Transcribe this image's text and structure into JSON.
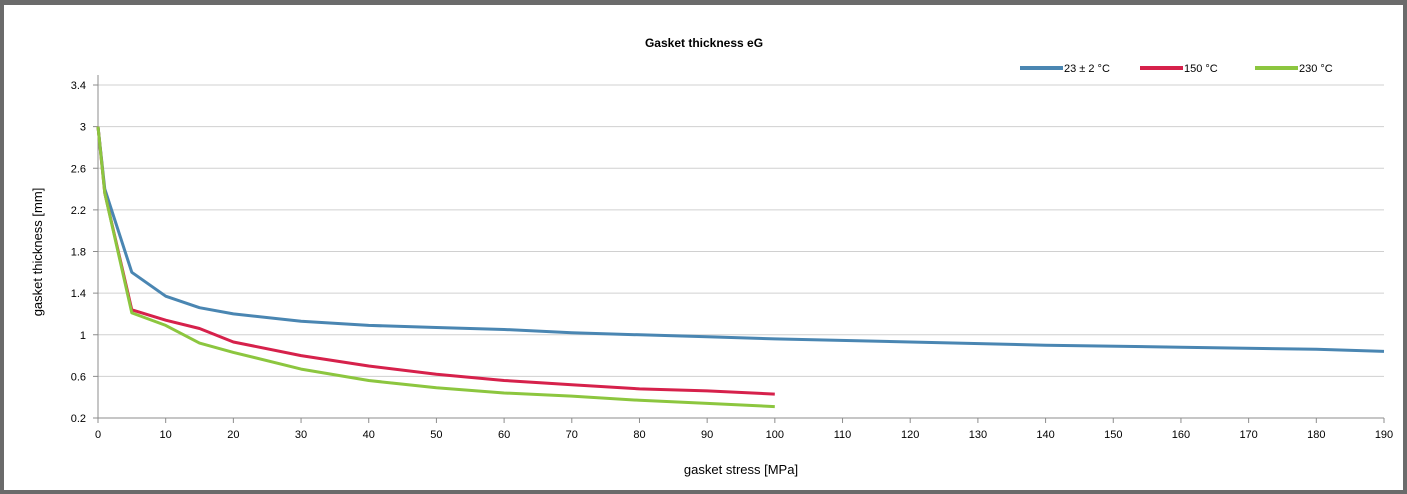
{
  "chart_data": {
    "type": "line",
    "title": "Gasket thickness eG",
    "xlabel": "gasket stress [MPa]",
    "ylabel": "gasket thickness [mm]",
    "xlim": [
      0,
      190
    ],
    "ylim": [
      0.2,
      3.4
    ],
    "x_ticks": [
      0,
      10,
      20,
      30,
      40,
      50,
      60,
      70,
      80,
      90,
      100,
      110,
      120,
      130,
      140,
      150,
      160,
      170,
      180,
      190
    ],
    "y_ticks": [
      0.2,
      0.6,
      1,
      1.4,
      1.8,
      2.2,
      2.6,
      3,
      3.4
    ],
    "y_tick_labels": [
      "0.2",
      "0.6",
      "1",
      "1.4",
      "1.8",
      "2.2",
      "2.6",
      "3",
      "3.4"
    ],
    "grid": "horizontal",
    "legend_position": "top-right",
    "series": [
      {
        "name": "23 ± 2 °C",
        "color": "#4a86b2",
        "x": [
          0,
          1,
          5,
          10,
          15,
          20,
          30,
          40,
          50,
          60,
          70,
          80,
          90,
          100,
          120,
          140,
          160,
          180,
          190
        ],
        "y": [
          3.0,
          2.4,
          1.6,
          1.37,
          1.26,
          1.2,
          1.13,
          1.09,
          1.07,
          1.05,
          1.02,
          1.0,
          0.98,
          0.96,
          0.93,
          0.9,
          0.88,
          0.86,
          0.84
        ]
      },
      {
        "name": "150 °C",
        "color": "#d6214b",
        "x": [
          0,
          1,
          5,
          10,
          15,
          20,
          30,
          40,
          50,
          60,
          70,
          80,
          90,
          100
        ],
        "y": [
          3.0,
          2.36,
          1.24,
          1.14,
          1.06,
          0.93,
          0.8,
          0.7,
          0.62,
          0.56,
          0.52,
          0.48,
          0.46,
          0.43
        ]
      },
      {
        "name": "230 °C",
        "color": "#8cc63f",
        "x": [
          0,
          1,
          5,
          10,
          15,
          20,
          30,
          40,
          50,
          60,
          70,
          80,
          90,
          100
        ],
        "y": [
          3.0,
          2.36,
          1.21,
          1.09,
          0.92,
          0.83,
          0.67,
          0.56,
          0.49,
          0.44,
          0.41,
          0.37,
          0.34,
          0.31
        ]
      }
    ]
  }
}
